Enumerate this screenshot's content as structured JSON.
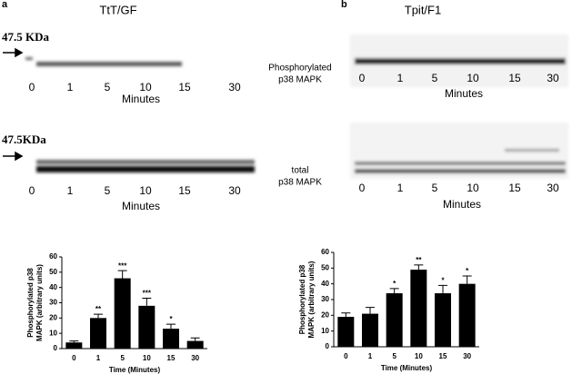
{
  "panels": [
    {
      "letter": "a",
      "title": "TtT/GF",
      "blots": [
        {
          "marker": "47.5 KDa",
          "lanes": [
            "0",
            "1",
            "5",
            "10",
            "15",
            "30"
          ],
          "axis": "Minutes"
        },
        {
          "marker": "47.5KDa",
          "lanes": [
            "0",
            "1",
            "5",
            "10",
            "15",
            "30"
          ],
          "axis": "Minutes"
        }
      ]
    },
    {
      "letter": "b",
      "title": "Tpit/F1",
      "blots": [
        {
          "lanes": [
            "0",
            "1",
            "5",
            "10",
            "15",
            "30"
          ],
          "axis": "Minutes"
        },
        {
          "lanes": [
            "0",
            "1",
            "5",
            "10",
            "15",
            "30"
          ],
          "axis": "Minutes"
        }
      ]
    }
  ],
  "blot_labels": [
    [
      "Phosphorylated",
      "p38 MAPK"
    ],
    [
      "total",
      "p38 MAPK"
    ]
  ],
  "chart_data": [
    {
      "type": "bar",
      "categories": [
        "0",
        "1",
        "5",
        "10",
        "15",
        "30"
      ],
      "values": [
        4,
        20,
        46,
        28,
        13,
        5
      ],
      "errors": [
        1,
        2.5,
        5,
        5,
        3,
        2
      ],
      "annotations": [
        null,
        "**",
        "***",
        "***",
        "*",
        null
      ],
      "color": "#000000",
      "ylim": [
        0,
        60
      ],
      "yticks": [
        0,
        10,
        20,
        30,
        40,
        50,
        60
      ],
      "xlabel": "Time (Minutes)",
      "ylabel_lines": [
        "Phosphorylated p38",
        "MAPK (arbitrary units)"
      ]
    },
    {
      "type": "bar",
      "categories": [
        "0",
        "1",
        "5",
        "10",
        "15",
        "30"
      ],
      "values": [
        19,
        21,
        34,
        49,
        34,
        40
      ],
      "errors": [
        2.5,
        4,
        3,
        3,
        5,
        5
      ],
      "annotations": [
        null,
        null,
        "*",
        "**",
        "*",
        "*"
      ],
      "color": "#000000",
      "ylim": [
        0,
        60
      ],
      "yticks": [
        0,
        10,
        20,
        30,
        40,
        50,
        60
      ],
      "xlabel": "Time (Minutes)",
      "ylabel_lines": [
        "Phosphorylated p38",
        "MAPK (arbitrary units)"
      ]
    }
  ]
}
